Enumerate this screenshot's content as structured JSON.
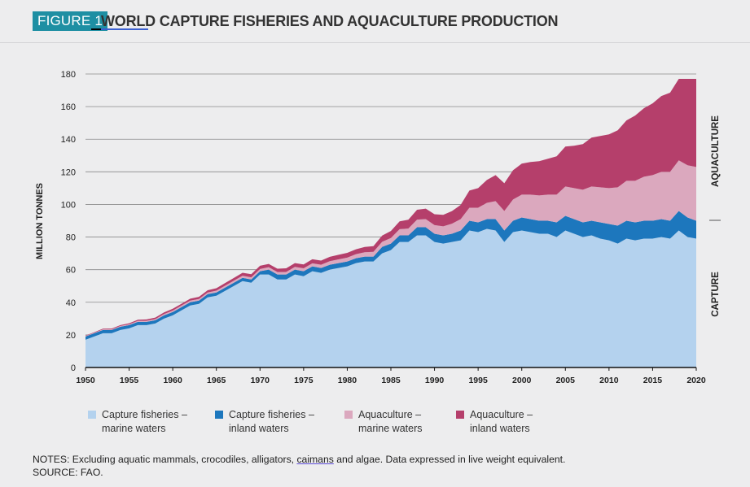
{
  "header": {
    "figure_label": "FIGURE 1",
    "title": "WORLD CAPTURE FISHERIES AND AQUACULTURE PRODUCTION"
  },
  "colors": {
    "capture_marine": "#b4d2ee",
    "capture_inland": "#1d77bd",
    "aqua_marine": "#dba8be",
    "aqua_inland": "#b53f6b",
    "badge": "#1e8fa3"
  },
  "notes": {
    "prefix": "NOTES: Excluding aquatic mammals, crocodiles, alligators, ",
    "underlined": "caimans",
    "suffix": " and algae. Data expressed in live weight equivalent.",
    "source": "SOURCE: FAO."
  },
  "legend": [
    {
      "line1": "Capture fisheries –",
      "line2": "marine waters"
    },
    {
      "line1": "Capture fisheries –",
      "line2": "inland waters"
    },
    {
      "line1": "Aquaculture –",
      "line2": "marine waters"
    },
    {
      "line1": "Aquaculture –",
      "line2": "inland waters"
    }
  ],
  "chart_data": {
    "type": "area",
    "stacked": true,
    "ylabel": "MILLION TONNES",
    "xlabel": "",
    "ylim": [
      0,
      180
    ],
    "xlim": [
      1950,
      2020
    ],
    "yticks": [
      0,
      20,
      40,
      60,
      80,
      100,
      120,
      140,
      160,
      180
    ],
    "xticks": [
      1950,
      1955,
      1960,
      1965,
      1970,
      1975,
      1980,
      1985,
      1990,
      1995,
      2000,
      2005,
      2010,
      2015,
      2020
    ],
    "grid": "horizontal",
    "legend_position": "bottom",
    "right_labels": [
      "AQUACULTURE",
      "CAPTURE"
    ],
    "series": [
      {
        "name": "Capture fisheries – marine waters",
        "color": "#b4d2ee",
        "years": [
          1950,
          1951,
          1952,
          1953,
          1954,
          1955,
          1956,
          1957,
          1958,
          1959,
          1960,
          1961,
          1962,
          1963,
          1964,
          1965,
          1966,
          1967,
          1968,
          1969,
          1970,
          1971,
          1972,
          1973,
          1974,
          1975,
          1976,
          1977,
          1978,
          1979,
          1980,
          1981,
          1982,
          1983,
          1984,
          1985,
          1986,
          1987,
          1988,
          1989,
          1990,
          1991,
          1992,
          1993,
          1994,
          1995,
          1996,
          1997,
          1998,
          1999,
          2000,
          2001,
          2002,
          2003,
          2004,
          2005,
          2006,
          2007,
          2008,
          2009,
          2010,
          2011,
          2012,
          2013,
          2014,
          2015,
          2016,
          2017,
          2018,
          2019,
          2020
        ],
        "values": [
          17,
          19,
          21,
          21,
          23,
          24,
          26,
          26,
          27,
          30,
          32,
          35,
          38,
          39,
          43,
          44,
          47,
          50,
          53,
          52,
          57,
          57,
          54,
          54,
          57,
          56,
          59,
          58,
          60,
          61,
          62,
          64,
          65,
          65,
          70,
          72,
          77,
          77,
          81,
          81,
          77,
          76,
          77,
          78,
          84,
          83,
          85,
          84,
          77,
          83,
          84,
          83,
          82,
          82,
          80,
          84,
          82,
          80,
          81,
          79,
          78,
          76,
          79,
          78,
          79,
          79,
          80,
          79,
          84,
          80,
          79
        ]
      },
      {
        "name": "Capture fisheries – inland waters",
        "color": "#1d77bd",
        "years": [
          1950,
          1951,
          1952,
          1953,
          1954,
          1955,
          1956,
          1957,
          1958,
          1959,
          1960,
          1961,
          1962,
          1963,
          1964,
          1965,
          1966,
          1967,
          1968,
          1969,
          1970,
          1971,
          1972,
          1973,
          1974,
          1975,
          1976,
          1977,
          1978,
          1979,
          1980,
          1981,
          1982,
          1983,
          1984,
          1985,
          1986,
          1987,
          1988,
          1989,
          1990,
          1991,
          1992,
          1993,
          1994,
          1995,
          1996,
          1997,
          1998,
          1999,
          2000,
          2001,
          2002,
          2003,
          2004,
          2005,
          2006,
          2007,
          2008,
          2009,
          2010,
          2011,
          2012,
          2013,
          2014,
          2015,
          2016,
          2017,
          2018,
          2019,
          2020
        ],
        "values": [
          2,
          2,
          2,
          2,
          2,
          2,
          2,
          2,
          2,
          2,
          2,
          2,
          2,
          2,
          2,
          2,
          2,
          2,
          2,
          2,
          2,
          3,
          3,
          3,
          3,
          3,
          3,
          3,
          3,
          3,
          3,
          3,
          3,
          3,
          4,
          4,
          4,
          4,
          5,
          5,
          5,
          5,
          5,
          6,
          6,
          6,
          6,
          7,
          7,
          7,
          8,
          8,
          8,
          8,
          9,
          9,
          9,
          9,
          9,
          10,
          10,
          11,
          11,
          11,
          11,
          11,
          11,
          11,
          12,
          12,
          11
        ]
      },
      {
        "name": "Aquaculture – marine waters",
        "color": "#dba8be",
        "years": [
          1950,
          1951,
          1952,
          1953,
          1954,
          1955,
          1956,
          1957,
          1958,
          1959,
          1960,
          1961,
          1962,
          1963,
          1964,
          1965,
          1966,
          1967,
          1968,
          1969,
          1970,
          1971,
          1972,
          1973,
          1974,
          1975,
          1976,
          1977,
          1978,
          1979,
          1980,
          1981,
          1982,
          1983,
          1984,
          1985,
          1986,
          1987,
          1988,
          1989,
          1990,
          1991,
          1992,
          1993,
          1994,
          1995,
          1996,
          1997,
          1998,
          1999,
          2000,
          2001,
          2002,
          2003,
          2004,
          2005,
          2006,
          2007,
          2008,
          2009,
          2010,
          2011,
          2012,
          2013,
          2014,
          2015,
          2016,
          2017,
          2018,
          2019,
          2020
        ],
        "values": [
          0.3,
          0.3,
          0.4,
          0.4,
          0.5,
          0.5,
          0.6,
          0.7,
          0.7,
          0.8,
          0.9,
          1,
          1,
          1,
          1,
          1.1,
          1.2,
          1.2,
          1.3,
          1.3,
          1.4,
          1.5,
          1.5,
          1.6,
          1.7,
          1.8,
          1.9,
          2,
          2.2,
          2.3,
          2.4,
          2.5,
          2.7,
          2.9,
          3.1,
          3.4,
          3.8,
          4.2,
          4.7,
          5,
          5.3,
          5.6,
          6.2,
          7,
          8,
          9,
          10,
          11,
          12,
          13,
          14,
          15,
          15.5,
          16,
          17,
          18,
          19,
          20,
          21,
          21.5,
          22,
          23.5,
          24.5,
          25.5,
          27,
          28,
          29,
          30,
          31,
          32,
          33
        ]
      },
      {
        "name": "Aquaculture – inland waters",
        "color": "#b53f6b",
        "years": [
          1950,
          1951,
          1952,
          1953,
          1954,
          1955,
          1956,
          1957,
          1958,
          1959,
          1960,
          1961,
          1962,
          1963,
          1964,
          1965,
          1966,
          1967,
          1968,
          1969,
          1970,
          1971,
          1972,
          1973,
          1974,
          1975,
          1976,
          1977,
          1978,
          1979,
          1980,
          1981,
          1982,
          1983,
          1984,
          1985,
          1986,
          1987,
          1988,
          1989,
          1990,
          1991,
          1992,
          1993,
          1994,
          1995,
          1996,
          1997,
          1998,
          1999,
          2000,
          2001,
          2002,
          2003,
          2004,
          2005,
          2006,
          2007,
          2008,
          2009,
          2010,
          2011,
          2012,
          2013,
          2014,
          2015,
          2016,
          2017,
          2018,
          2019,
          2020
        ],
        "values": [
          0.3,
          0.3,
          0.4,
          0.5,
          0.5,
          0.6,
          0.7,
          0.8,
          0.9,
          1,
          1.1,
          1.1,
          1.2,
          1.3,
          1.4,
          1.5,
          1.6,
          1.7,
          1.8,
          1.9,
          2,
          2,
          2.1,
          2.2,
          2.3,
          2.4,
          2.5,
          2.6,
          2.7,
          2.8,
          2.9,
          3,
          3.2,
          3.5,
          3.8,
          4.3,
          4.8,
          5.4,
          6,
          6.4,
          6.7,
          7,
          7.7,
          8.7,
          10.5,
          12,
          14,
          16,
          17,
          18,
          19,
          20,
          21,
          22,
          23.5,
          24.5,
          26,
          28,
          30,
          31.5,
          33,
          35,
          37,
          40,
          42,
          44,
          46.5,
          48.5,
          50,
          53,
          54
        ]
      }
    ]
  }
}
